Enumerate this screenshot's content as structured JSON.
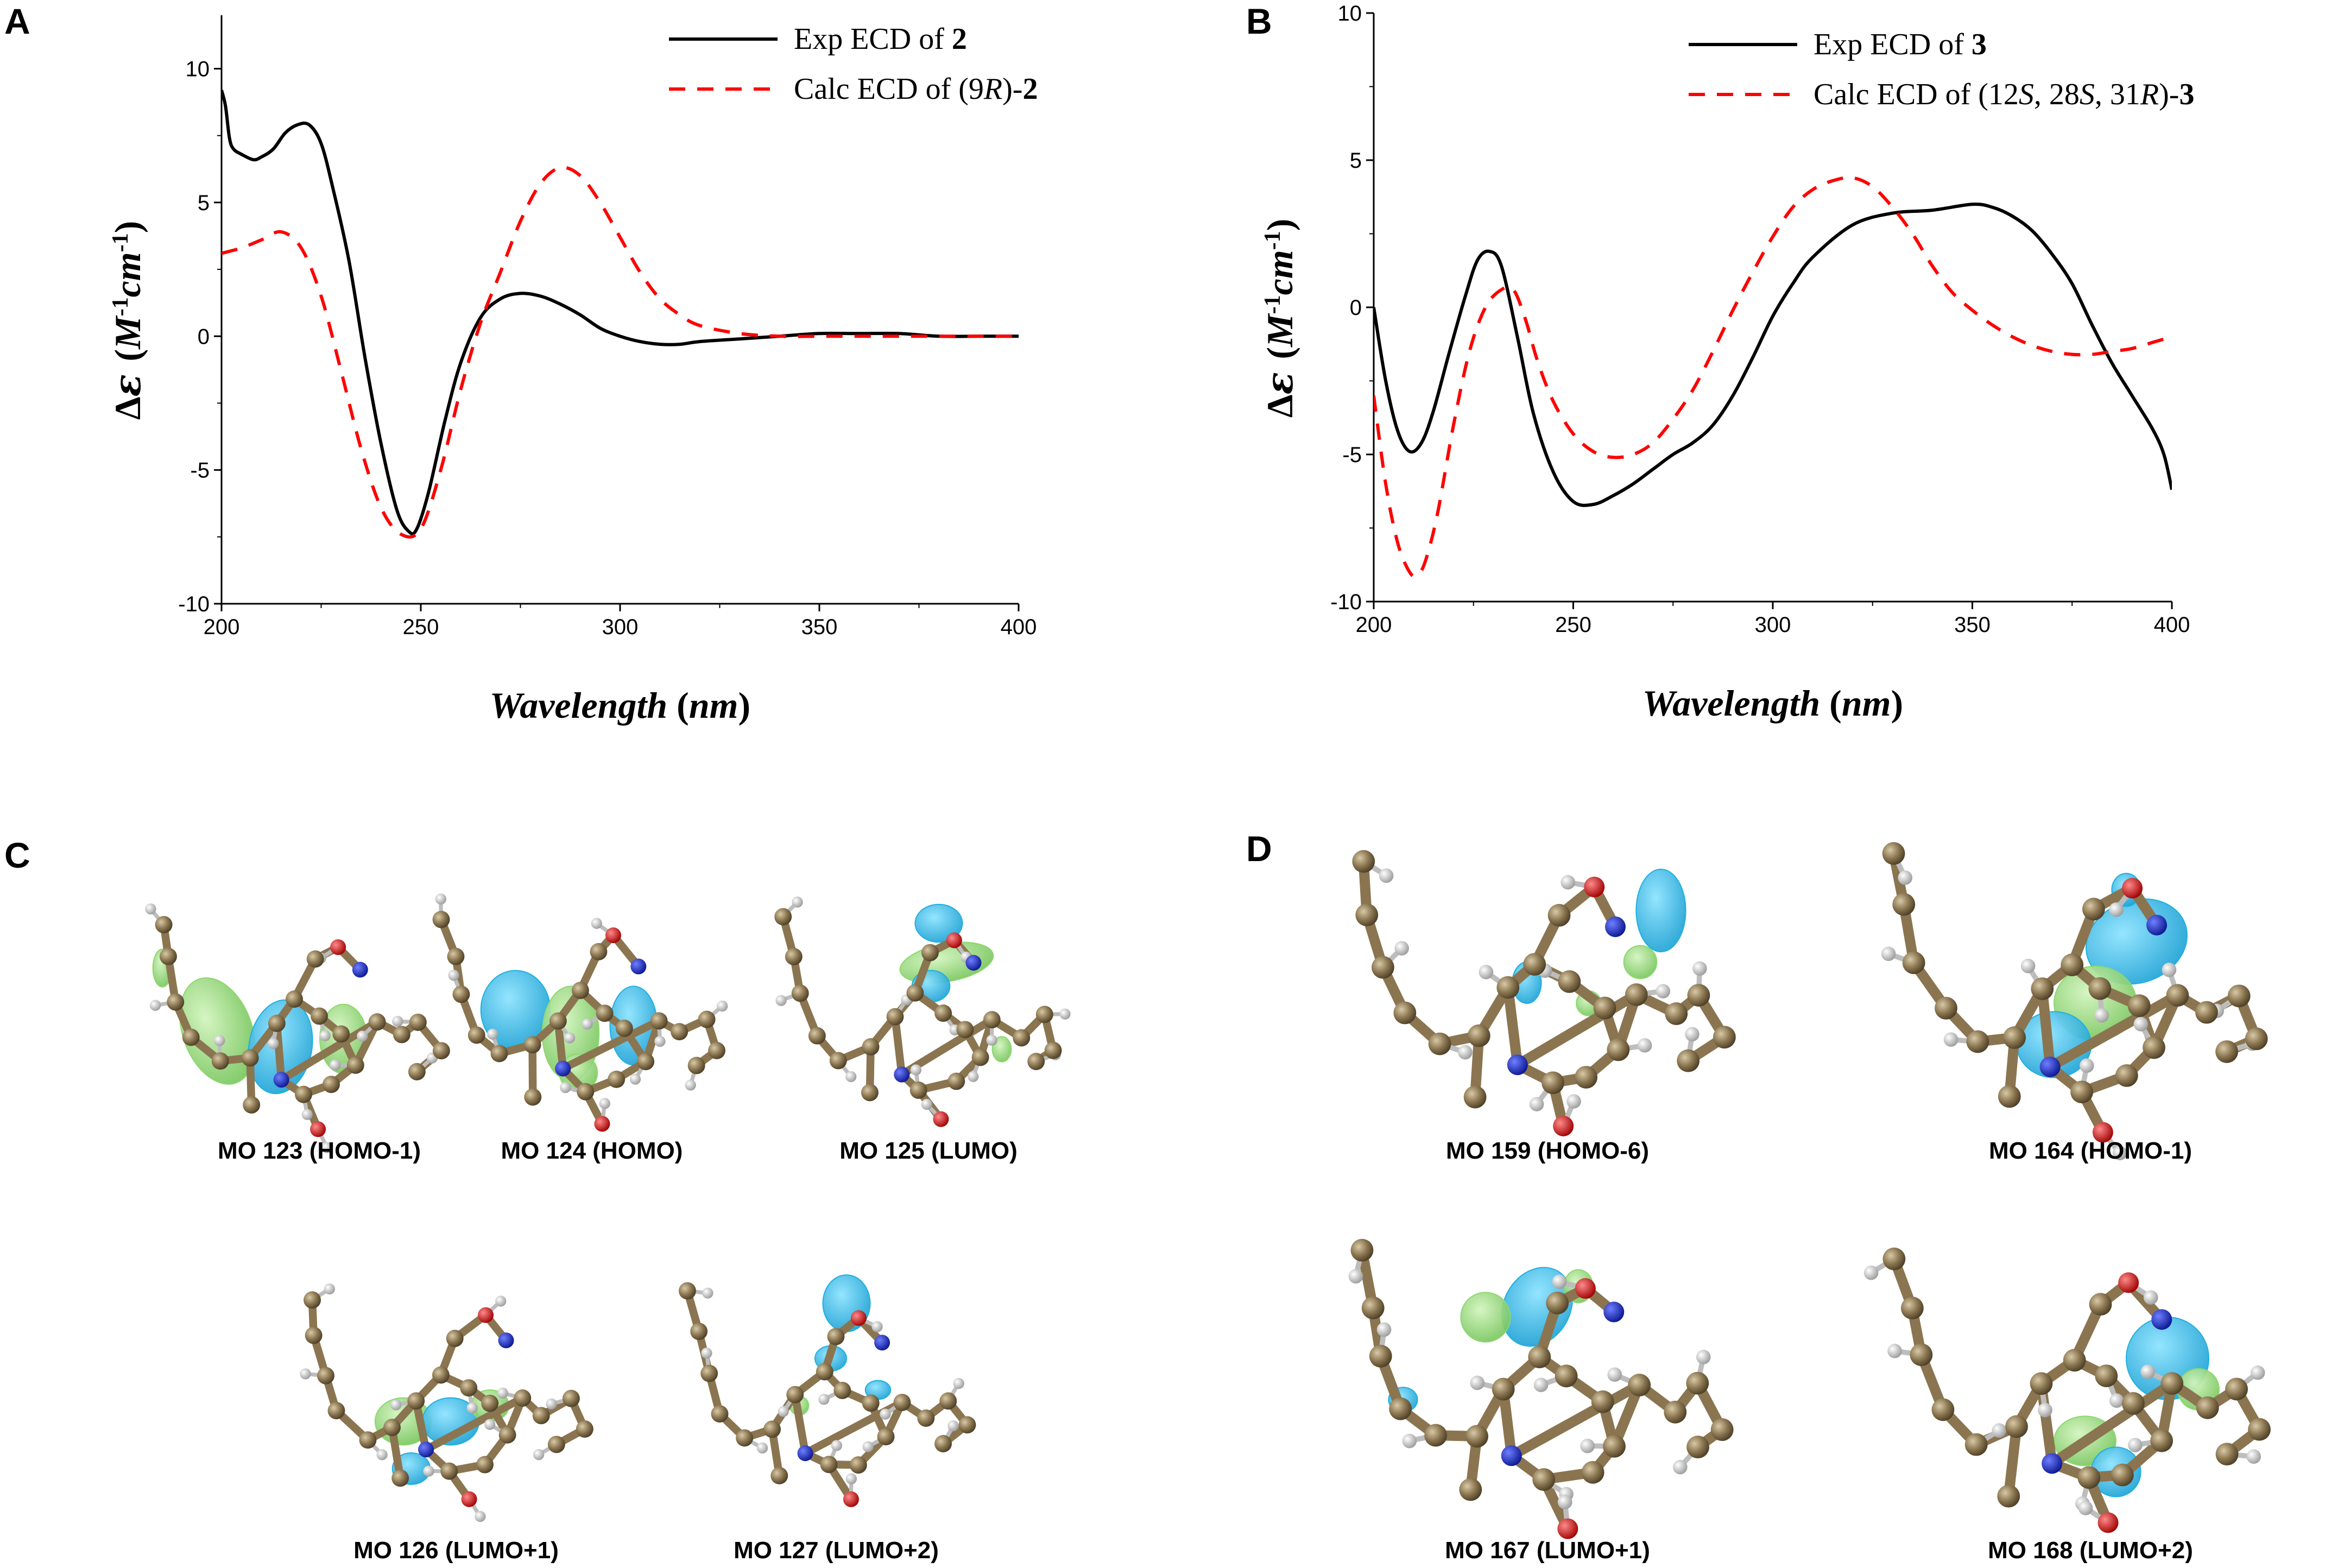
{
  "panels": {
    "A": "A",
    "B": "B",
    "C": "C",
    "D": "D"
  },
  "colors": {
    "exp": "#000000",
    "calc": "#ff0000",
    "orbital_blue": "#1fb0e0",
    "orbital_green": "#8ed870",
    "carbon": "#8a7550",
    "nitrogen": "#1a2fd0",
    "oxygen": "#e01010",
    "hydrogen": "#d8d8d8"
  },
  "chart_data": [
    {
      "panel": "A",
      "type": "line",
      "title": "",
      "xlabel": "Wavelength (nm)",
      "ylabel": "Δε (M-1cm-1)",
      "xlim": [
        200,
        400
      ],
      "ylim": [
        -10,
        12
      ],
      "xticks": [
        200,
        250,
        300,
        350,
        400
      ],
      "yticks": [
        -10,
        -5,
        0,
        5,
        10
      ],
      "legend_position": "top-right",
      "legend": [
        {
          "pre": "Exp ECD of ",
          "italic": "",
          "post": "",
          "bold": "2"
        },
        {
          "pre": "Calc ECD of (9",
          "italic": "R",
          "post": ")-",
          "bold": "2"
        }
      ],
      "series": [
        {
          "name": "Exp ECD of 2",
          "style": "solid",
          "x": [
            200,
            201,
            202,
            203,
            205,
            208,
            210,
            213,
            216,
            219,
            222,
            225,
            228,
            232,
            236,
            240,
            244,
            247,
            249,
            252,
            256,
            260,
            265,
            270,
            275,
            280,
            285,
            290,
            295,
            300,
            305,
            310,
            315,
            320,
            330,
            340,
            350,
            360,
            370,
            380,
            390,
            400
          ],
          "y": [
            9.2,
            8.6,
            7.4,
            7.0,
            6.8,
            6.6,
            6.7,
            7.0,
            7.6,
            7.9,
            7.9,
            7.2,
            5.5,
            2.8,
            -0.8,
            -4.0,
            -6.5,
            -7.3,
            -7.2,
            -5.8,
            -3.2,
            -1.0,
            0.7,
            1.4,
            1.6,
            1.5,
            1.2,
            0.8,
            0.3,
            0.0,
            -0.2,
            -0.3,
            -0.3,
            -0.2,
            -0.1,
            0.0,
            0.1,
            0.1,
            0.1,
            0.0,
            0.0,
            0.0
          ]
        },
        {
          "name": "Calc ECD of (9R)-2",
          "style": "dashed",
          "x": [
            200,
            205,
            210,
            215,
            220,
            225,
            230,
            235,
            240,
            245,
            250,
            255,
            260,
            265,
            270,
            275,
            280,
            285,
            290,
            295,
            300,
            305,
            310,
            315,
            320,
            330,
            340,
            350,
            360,
            370,
            380,
            390,
            400
          ],
          "y": [
            3.1,
            3.3,
            3.6,
            3.9,
            3.3,
            1.5,
            -1.3,
            -4.2,
            -6.4,
            -7.4,
            -7.2,
            -5.0,
            -2.0,
            0.5,
            2.4,
            4.3,
            5.7,
            6.3,
            6.0,
            5.0,
            3.7,
            2.4,
            1.4,
            0.8,
            0.4,
            0.1,
            0.0,
            0.0,
            0.0,
            0.0,
            0.0,
            0.0,
            0.0
          ]
        }
      ]
    },
    {
      "panel": "B",
      "type": "line",
      "title": "",
      "xlabel": "Wavelength (nm)",
      "ylabel": "Δε (M-1cm-1)",
      "xlim": [
        200,
        400
      ],
      "ylim": [
        -10,
        10
      ],
      "xticks": [
        200,
        250,
        300,
        350,
        400
      ],
      "yticks": [
        -10,
        -5,
        0,
        5,
        10
      ],
      "legend_position": "top-right",
      "legend": [
        {
          "pre": "Exp ECD of ",
          "italic": "",
          "post": "",
          "bold": "3"
        },
        {
          "pre": "Calc ECD of (12",
          "italic": "S",
          "post": ", 28S, 31R)-",
          "bold": "3"
        }
      ],
      "series": [
        {
          "name": "Exp ECD of 3",
          "style": "solid",
          "x": [
            200,
            203,
            206,
            209,
            212,
            215,
            219,
            223,
            226,
            229,
            232,
            236,
            240,
            245,
            250,
            255,
            260,
            265,
            270,
            275,
            280,
            285,
            290,
            295,
            300,
            305,
            310,
            320,
            330,
            340,
            350,
            355,
            360,
            365,
            370,
            375,
            380,
            385,
            390,
            395,
            398,
            400
          ],
          "y": [
            0.0,
            -2.5,
            -4.2,
            -4.9,
            -4.6,
            -3.5,
            -1.5,
            0.4,
            1.6,
            1.9,
            1.4,
            -1.0,
            -3.6,
            -5.6,
            -6.6,
            -6.7,
            -6.4,
            -6.0,
            -5.5,
            -5.0,
            -4.6,
            -4.0,
            -3.0,
            -1.7,
            -0.3,
            0.8,
            1.7,
            2.8,
            3.2,
            3.3,
            3.5,
            3.4,
            3.1,
            2.6,
            1.8,
            0.8,
            -0.6,
            -1.9,
            -3.0,
            -4.1,
            -5.0,
            -6.2
          ]
        },
        {
          "name": "Calc ECD of (12S, 28S, 31R)-3",
          "style": "dashed",
          "x": [
            200,
            203,
            206,
            209,
            211,
            213,
            216,
            220,
            224,
            228,
            232,
            235,
            238,
            241,
            245,
            250,
            255,
            260,
            265,
            270,
            275,
            280,
            285,
            290,
            295,
            300,
            305,
            310,
            315,
            320,
            325,
            330,
            335,
            340,
            345,
            350,
            355,
            360,
            365,
            370,
            375,
            380,
            385,
            390,
            395,
            400
          ],
          "y": [
            -3.0,
            -6.0,
            -8.0,
            -9.0,
            -9.1,
            -8.6,
            -7.0,
            -4.0,
            -1.5,
            0.0,
            0.6,
            0.6,
            -0.4,
            -1.8,
            -3.2,
            -4.3,
            -4.9,
            -5.1,
            -5.0,
            -4.6,
            -3.8,
            -2.8,
            -1.5,
            -0.1,
            1.2,
            2.4,
            3.4,
            4.0,
            4.3,
            4.4,
            4.1,
            3.4,
            2.5,
            1.4,
            0.5,
            -0.1,
            -0.6,
            -1.0,
            -1.3,
            -1.5,
            -1.6,
            -1.6,
            -1.5,
            -1.4,
            -1.2,
            -1.0
          ]
        }
      ]
    }
  ],
  "mo_captions": {
    "mo123": "MO 123 (HOMO-1)",
    "mo124": "MO 124 (HOMO)",
    "mo125": "MO 125 (LUMO)",
    "mo126": "MO 126 (LUMO+1)",
    "mo127": "MO 127 (LUMO+2)",
    "mo159": "MO 159 (HOMO-6)",
    "mo164": "MO 164 (HOMO-1)",
    "mo167": "MO 167 (LUMO+1)",
    "mo168": "MO 168 (LUMO+2)"
  }
}
